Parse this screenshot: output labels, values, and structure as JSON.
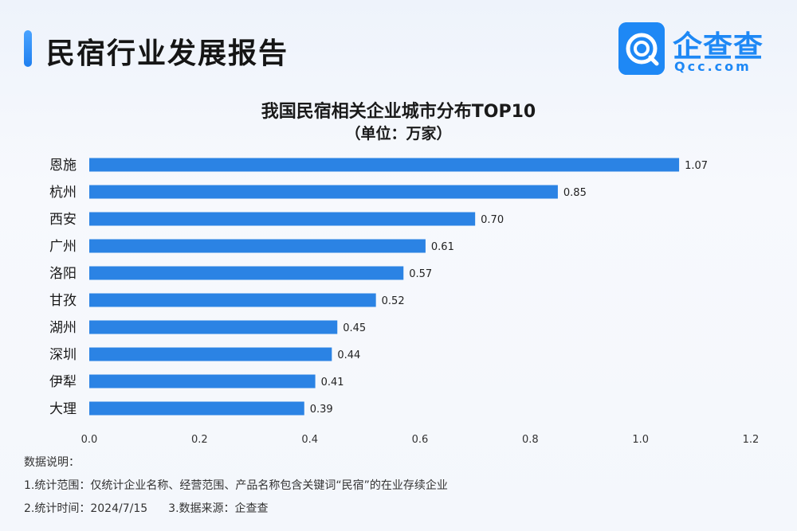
{
  "header": {
    "title": "民宿行业发展报告",
    "logo_name": "企查查",
    "logo_domain": "Qcc.com"
  },
  "colors": {
    "bar": "#2b83e4",
    "accent": "#1e88f5"
  },
  "chart_data": {
    "type": "bar",
    "orientation": "horizontal",
    "title": "我国民宿相关企业城市分布TOP10",
    "subtitle": "（单位：万家）",
    "categories": [
      "恩施",
      "杭州",
      "西安",
      "广州",
      "洛阳",
      "甘孜",
      "湖州",
      "深圳",
      "伊犁",
      "大理"
    ],
    "values": [
      1.07,
      0.85,
      0.7,
      0.61,
      0.57,
      0.52,
      0.45,
      0.44,
      0.41,
      0.39
    ],
    "value_labels": [
      "1.07",
      "0.85",
      "0.70",
      "0.61",
      "0.57",
      "0.52",
      "0.45",
      "0.44",
      "0.41",
      "0.39"
    ],
    "xlim": [
      0,
      1.2
    ],
    "xticks": [
      "0.0",
      "0.2",
      "0.4",
      "0.6",
      "0.8",
      "1.0",
      "1.2"
    ],
    "grid": false,
    "legend": "none"
  },
  "notes": {
    "heading": "数据说明：",
    "line1": "1.统计范围：仅统计企业名称、经营范围、产品名称包含关键词“民宿”的在业存续企业",
    "line2a": "2.统计时间：2024/7/15",
    "line2b": "3.数据来源：企查查"
  }
}
